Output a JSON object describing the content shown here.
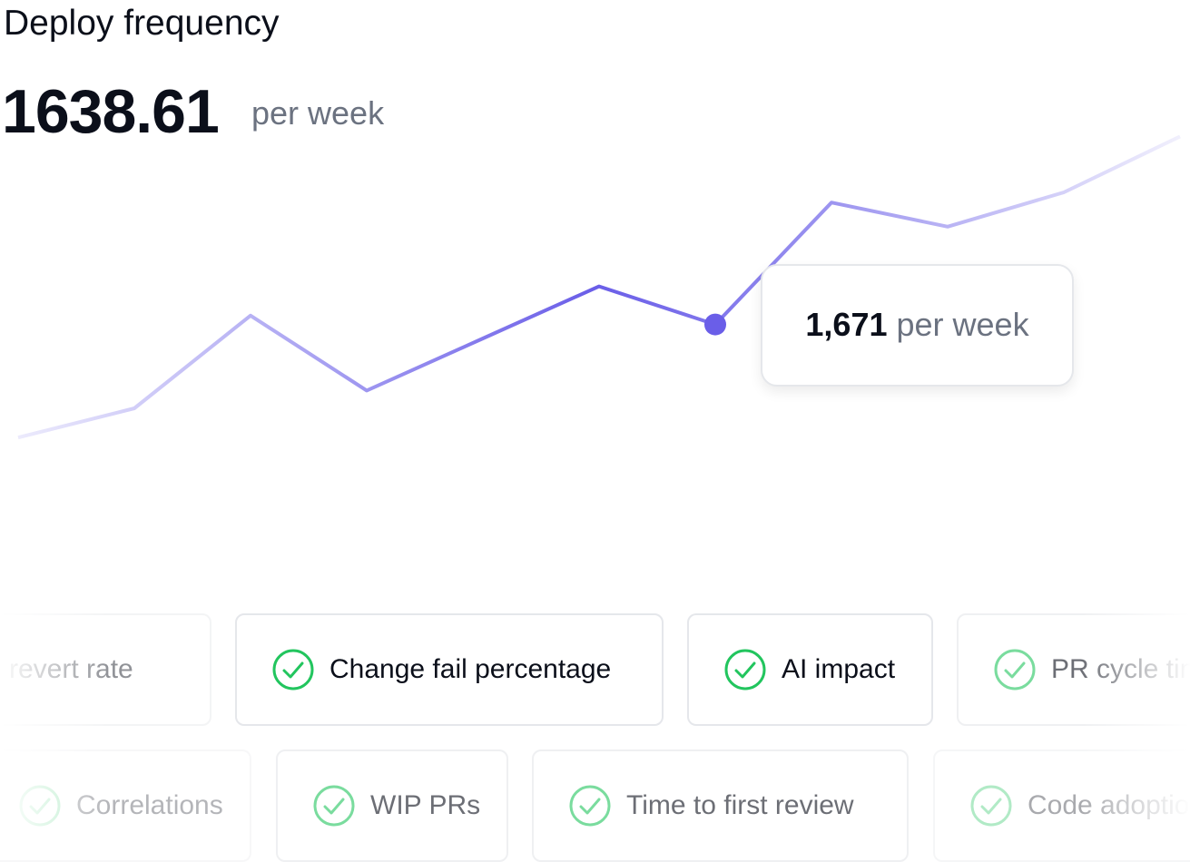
{
  "header": {
    "title": "Deploy frequency",
    "value": "1638.61",
    "unit": "per week"
  },
  "chart_data": {
    "type": "line",
    "x": [
      0,
      1,
      2,
      3,
      4,
      5,
      6,
      7,
      8,
      9,
      10
    ],
    "xlim": [
      0,
      10
    ],
    "series": [
      {
        "color": "#6a5ee8",
        "values": [
          1582,
          1605,
          1678,
          1619,
          1660,
          1701,
          1671,
          1767,
          1748,
          1775,
          1819
        ],
        "value_labels": [
          null,
          null,
          null,
          null,
          null,
          null,
          "1,671",
          null,
          null,
          null,
          null
        ]
      }
    ],
    "ylim": [
      1555,
      1855
    ],
    "tooltip_unit": "per week"
  },
  "chips": {
    "row1": [
      "PR revert rate",
      "Change fail percentage",
      "AI impact",
      "PR cycle time"
    ],
    "row2": [
      "Correlations",
      "WIP PRs",
      "Time to first review",
      "Code adoption"
    ]
  }
}
